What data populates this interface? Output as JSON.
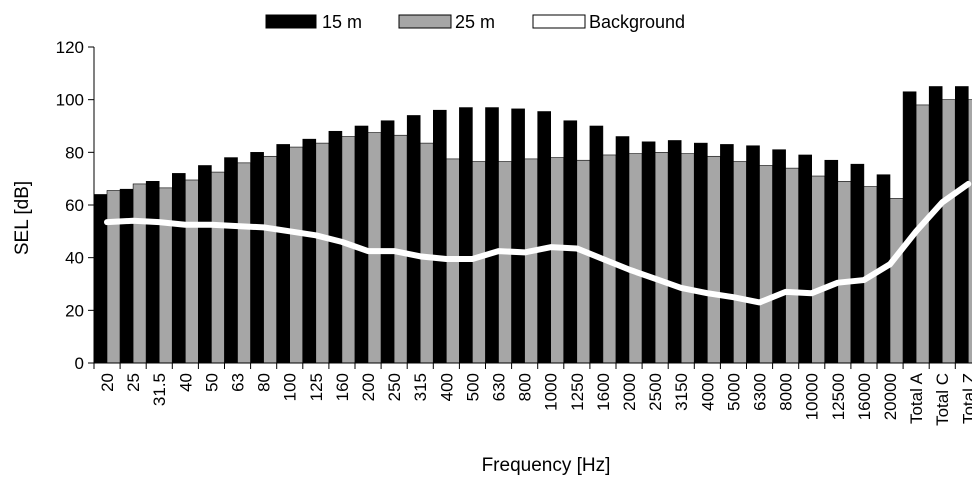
{
  "chart_data": {
    "type": "bar",
    "xlabel": "Frequency [Hz]",
    "ylabel": "SEL [dB]",
    "ylim": [
      0,
      120
    ],
    "yticks": [
      0,
      20,
      40,
      60,
      80,
      100,
      120
    ],
    "grid": false,
    "legend_position": "top",
    "categories": [
      "20",
      "25",
      "31.5",
      "40",
      "50",
      "63",
      "80",
      "100",
      "125",
      "160",
      "200",
      "250",
      "315",
      "400",
      "500",
      "630",
      "800",
      "1000",
      "1250",
      "1600",
      "2000",
      "2500",
      "3150",
      "4000",
      "5000",
      "6300",
      "8000",
      "10000",
      "12500",
      "16000",
      "20000",
      "Total A",
      "Total C",
      "Total Z"
    ],
    "series": [
      {
        "name": "15 m",
        "type": "bar",
        "color": "#000000",
        "values": [
          64,
          66,
          69,
          72,
          75,
          78,
          80,
          83,
          85,
          88,
          90,
          92,
          94,
          96,
          97,
          97,
          96.5,
          95.5,
          92,
          90,
          86,
          84,
          84.5,
          83.5,
          83,
          82.5,
          81,
          79,
          77,
          75.5,
          71.5,
          103,
          105,
          105
        ]
      },
      {
        "name": "25 m",
        "type": "bar",
        "color": "#a6a6a6",
        "values": [
          65.5,
          68,
          66.5,
          69.5,
          72.5,
          76,
          78.5,
          82,
          83.5,
          86,
          87.5,
          86.5,
          83.5,
          77.5,
          76.5,
          76.5,
          77.5,
          78,
          77,
          79,
          79.5,
          80,
          79.5,
          78.5,
          76.5,
          75,
          74,
          71,
          69,
          67,
          62.5,
          98,
          100,
          100
        ]
      },
      {
        "name": "Background",
        "type": "line",
        "color": "#ffffff",
        "values": [
          53.5,
          54,
          53.5,
          52.5,
          52.5,
          52,
          51.5,
          50,
          48.5,
          46,
          42.5,
          42.5,
          40.5,
          39.5,
          39.5,
          42.5,
          42,
          44,
          43.5,
          39.5,
          35.5,
          32,
          28.5,
          26.5,
          25,
          23,
          27,
          26.5,
          30.5,
          31.5,
          37.5,
          50,
          61,
          68
        ]
      }
    ]
  }
}
